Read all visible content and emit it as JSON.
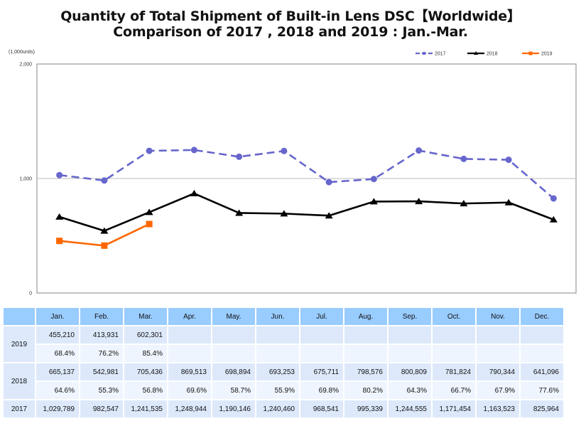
{
  "title_line1": "Quantity of Total Shipment of Built-in Lens DSC【Worldwide】",
  "title_line2": "Comparison of 2017 , 2018 and 2019 : Jan.-Mar.",
  "chart_data": {
    "type": "line",
    "title": "Quantity of Total Shipment of Built-in Lens DSC【Worldwide】 Comparison of 2017 , 2018 and 2019 : Jan.-Mar.",
    "ylabel": "(1,000units)",
    "xlabel": "",
    "ylim": [
      0,
      2000
    ],
    "yticks": [
      0,
      1000,
      2000
    ],
    "ytick_labels": [
      "0",
      "1,000",
      "2,000"
    ],
    "grid": "horizontal at 1,000",
    "legend_position": "top-right",
    "categories": [
      "Jan.",
      "Feb.",
      "Mar.",
      "Apr.",
      "May.",
      "Jun.",
      "Jul.",
      "Aug.",
      "Sep.",
      "Oct.",
      "Nov.",
      "Dec."
    ],
    "series": [
      {
        "name": "2017",
        "color": "#6666cc",
        "style": "dashed",
        "marker": "circle",
        "values": [
          1029.789,
          982.547,
          1241.535,
          1248.944,
          1190.146,
          1240.46,
          968.541,
          995.339,
          1244.555,
          1171.454,
          1163.523,
          825.964
        ]
      },
      {
        "name": "2018",
        "color": "#000000",
        "style": "solid",
        "marker": "triangle",
        "values": [
          665.137,
          542.981,
          705.436,
          869.513,
          698.894,
          693.253,
          675.711,
          798.576,
          800.809,
          781.824,
          790.344,
          641.096
        ]
      },
      {
        "name": "2019",
        "color": "#ff6600",
        "style": "solid",
        "marker": "square",
        "values": [
          455.21,
          413.931,
          602.301
        ]
      }
    ]
  },
  "table": {
    "headers": [
      "",
      "Jan.",
      "Feb.",
      "Mar.",
      "Apr.",
      "May.",
      "Jun.",
      "Jul.",
      "Aug.",
      "Sep.",
      "Oct.",
      "Nov.",
      "Dec."
    ],
    "rows": [
      {
        "year": "2019",
        "values": [
          "455,210",
          "413,931",
          "602,301",
          "",
          "",
          "",
          "",
          "",
          "",
          "",
          "",
          ""
        ],
        "ratios": [
          "68.4%",
          "76.2%",
          "85.4%",
          "",
          "",
          "",
          "",
          "",
          "",
          "",
          "",
          ""
        ]
      },
      {
        "year": "2018",
        "values": [
          "665,137",
          "542,981",
          "705,436",
          "869,513",
          "698,894",
          "693,253",
          "675,711",
          "798,576",
          "800,809",
          "781,824",
          "790,344",
          "641,096"
        ],
        "ratios": [
          "64.6%",
          "55.3%",
          "56.8%",
          "69.6%",
          "58.7%",
          "55.9%",
          "69.8%",
          "80.2%",
          "64.3%",
          "66.7%",
          "67.9%",
          "77.6%"
        ]
      },
      {
        "year": "2017",
        "values": [
          "1,029,789",
          "982,547",
          "1,241,535",
          "1,248,944",
          "1,190,146",
          "1,240,460",
          "968,541",
          "995,339",
          "1,244,555",
          "1,171,454",
          "1,163,523",
          "825,964"
        ]
      }
    ]
  }
}
